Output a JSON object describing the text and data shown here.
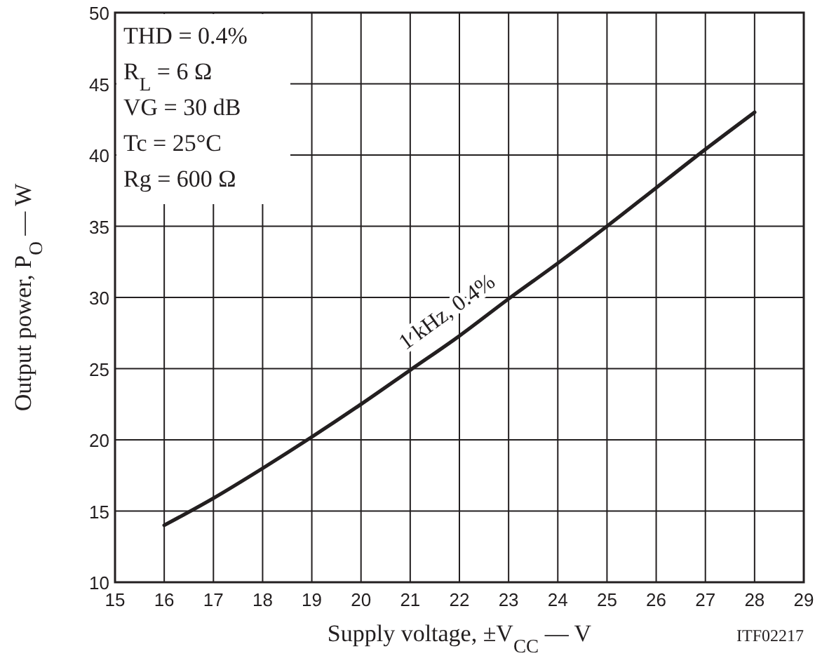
{
  "chart_data": {
    "type": "line",
    "xlabel": "Supply voltage, ±V$_{CC}$ — V",
    "ylabel": "Output power, P$_{O}$ — W",
    "x": [
      16,
      17,
      18,
      19,
      20,
      21,
      22,
      23,
      24,
      25,
      26,
      27,
      28
    ],
    "series": [
      {
        "name": "1 kHz, 0.4%",
        "color": "#231f20",
        "values": [
          14,
          15.9,
          18,
          20.2,
          22.5,
          24.9,
          27.3,
          29.9,
          32.4,
          35,
          37.7,
          40.4,
          43
        ]
      }
    ],
    "xlim": [
      15,
      29
    ],
    "xticks": [
      15,
      16,
      17,
      18,
      19,
      20,
      21,
      22,
      23,
      24,
      25,
      26,
      27,
      28,
      29
    ],
    "ylim": [
      10,
      50
    ],
    "yticks": [
      10,
      15,
      20,
      25,
      30,
      35,
      40,
      45,
      50
    ],
    "grid": true,
    "marker": "none",
    "line_style": "solid",
    "annotations": [
      "THD = 0.4%",
      "R$_{L}$ = 6 Ω",
      "VG = 30 dB",
      "Tc = 25°C",
      "Rg = 600 Ω",
      "ITF02217"
    ]
  }
}
